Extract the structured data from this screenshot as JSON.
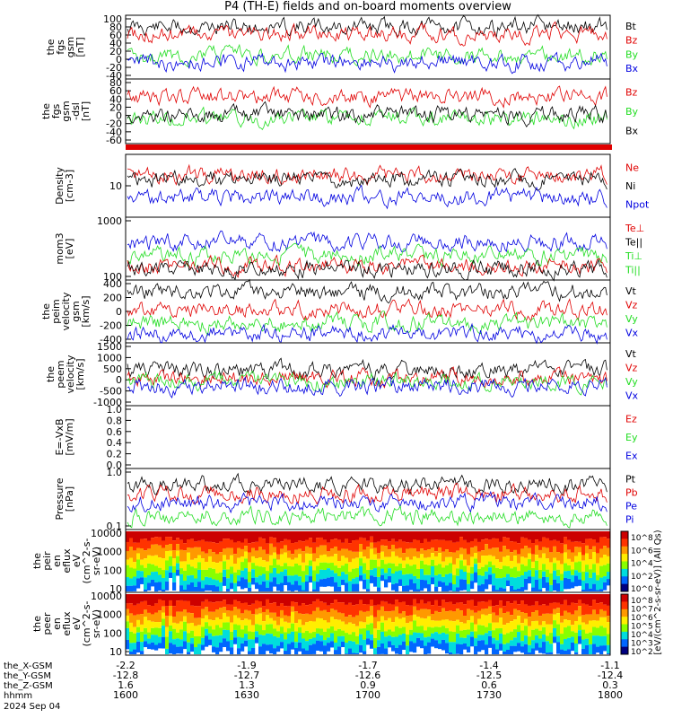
{
  "title": "P4 (TH-E) fields and on-board moments overview",
  "colors": {
    "black": "#000000",
    "red": "#e00000",
    "green": "#22dd22",
    "blue": "#0000e0"
  },
  "panels": [
    {
      "id": "fgs-gsm",
      "ylabel": [
        "the",
        "fgs",
        "gsm",
        "[nT]"
      ],
      "ticks": [
        "100",
        "80",
        "60",
        "40",
        "20",
        "0",
        "-20",
        "-40"
      ],
      "legend": [
        {
          "text": "Bt",
          "color": "black"
        },
        {
          "text": "Bz",
          "color": "red"
        },
        {
          "text": "By",
          "color": "green"
        },
        {
          "text": "Bx",
          "color": "blue"
        }
      ]
    },
    {
      "id": "fgs-dsl",
      "ylabel": [
        "the",
        "fgs",
        "gsm",
        "-dsl",
        "[nT]"
      ],
      "ticks": [
        "80",
        "60",
        "40",
        "20",
        "0",
        "-20",
        "-40",
        "-60"
      ],
      "legend": [
        {
          "text": "Bz",
          "color": "red"
        },
        {
          "text": "By",
          "color": "green"
        },
        {
          "text": "Bx",
          "color": "black"
        }
      ]
    },
    {
      "id": "density",
      "ylabel": [
        "Density",
        "[cm-3]"
      ],
      "ticks": [
        "10"
      ],
      "legend": [
        {
          "text": "Ne",
          "color": "red"
        },
        {
          "text": "Ni",
          "color": "black"
        },
        {
          "text": "Npot",
          "color": "blue"
        }
      ]
    },
    {
      "id": "temp",
      "ylabel": [
        "mom3",
        "[eV]"
      ],
      "ticks": [
        "1000",
        "100"
      ],
      "legend": [
        {
          "text": "Te⊥",
          "color": "red"
        },
        {
          "text": "Te||",
          "color": "black"
        },
        {
          "text": "Ti⊥",
          "color": "green"
        },
        {
          "text": "Ti||",
          "color": "green"
        }
      ]
    },
    {
      "id": "peim",
      "ylabel": [
        "the",
        "peim",
        "velocity",
        "gsm",
        "[km/s]"
      ],
      "ticks": [
        "400",
        "200",
        "0",
        "-200",
        "-400"
      ],
      "legend": [
        {
          "text": "Vt",
          "color": "black"
        },
        {
          "text": "Vz",
          "color": "red"
        },
        {
          "text": "Vy",
          "color": "green"
        },
        {
          "text": "Vx",
          "color": "blue"
        }
      ]
    },
    {
      "id": "peem",
      "ylabel": [
        "the",
        "peem",
        "velocity",
        "[km/s]"
      ],
      "ticks": [
        "1500",
        "1000",
        "500",
        "0",
        "-500",
        "-1000"
      ],
      "legend": [
        {
          "text": "Vt",
          "color": "black"
        },
        {
          "text": "Vz",
          "color": "red"
        },
        {
          "text": "Vy",
          "color": "green"
        },
        {
          "text": "Vx",
          "color": "blue"
        }
      ]
    },
    {
      "id": "efield",
      "ylabel": [
        "E=-VxB",
        "[mV/m]"
      ],
      "ticks": [
        "1.0",
        "0.8",
        "0.6",
        "0.4",
        "0.2",
        "0.0"
      ],
      "legend": [
        {
          "text": "Ez",
          "color": "red"
        },
        {
          "text": "Ey",
          "color": "green"
        },
        {
          "text": "Ex",
          "color": "blue"
        }
      ]
    },
    {
      "id": "pressure",
      "ylabel": [
        "Pressure",
        "[nPa]"
      ],
      "ticks": [
        "1.0",
        "0.1"
      ],
      "legend": [
        {
          "text": "Pt",
          "color": "black"
        },
        {
          "text": "Pb",
          "color": "red"
        },
        {
          "text": "Pe",
          "color": "blue"
        },
        {
          "text": "Pi",
          "color": "blue"
        }
      ]
    },
    {
      "id": "peir",
      "ylabel": [
        "the",
        "peir",
        "en",
        "eflux",
        "eV",
        "(cm^2-s-",
        "sr-eV)"
      ],
      "ticks": [
        "10000",
        "1000",
        "100",
        "10"
      ],
      "legend": []
    },
    {
      "id": "peer",
      "ylabel": [
        "the",
        "peer",
        "en",
        "eflux",
        "eV",
        "(cm^2-s-",
        "sr-eV)"
      ],
      "ticks": [
        "10000",
        "1000",
        "100",
        "10"
      ],
      "legend": []
    }
  ],
  "colorbar": {
    "label": "[eV/(cm^2-s-sr-eV)] (All Qs)",
    "top_ticks": [
      "10^8",
      "10^6",
      "10^4",
      "10^2",
      "10^0"
    ],
    "bottom_ticks": [
      "10^8",
      "10^7",
      "10^6",
      "10^5",
      "10^4",
      "10^3",
      "10^2"
    ]
  },
  "xaxis": {
    "rows": [
      {
        "label": "the_X-GSM",
        "values": [
          "-2.2",
          "-1.9",
          "-1.7",
          "-1.4",
          "-1.1"
        ]
      },
      {
        "label": "the_Y-GSM",
        "values": [
          "-12.8",
          "-12.7",
          "-12.6",
          "-12.5",
          "-12.4"
        ]
      },
      {
        "label": "the_Z-GSM",
        "values": [
          "1.6",
          "1.3",
          "0.9",
          "0.6",
          "0.3"
        ]
      },
      {
        "label": "hhmm",
        "values": [
          "1600",
          "1630",
          "1700",
          "1730",
          "1800"
        ]
      }
    ],
    "date": "2024 Sep 04"
  }
}
